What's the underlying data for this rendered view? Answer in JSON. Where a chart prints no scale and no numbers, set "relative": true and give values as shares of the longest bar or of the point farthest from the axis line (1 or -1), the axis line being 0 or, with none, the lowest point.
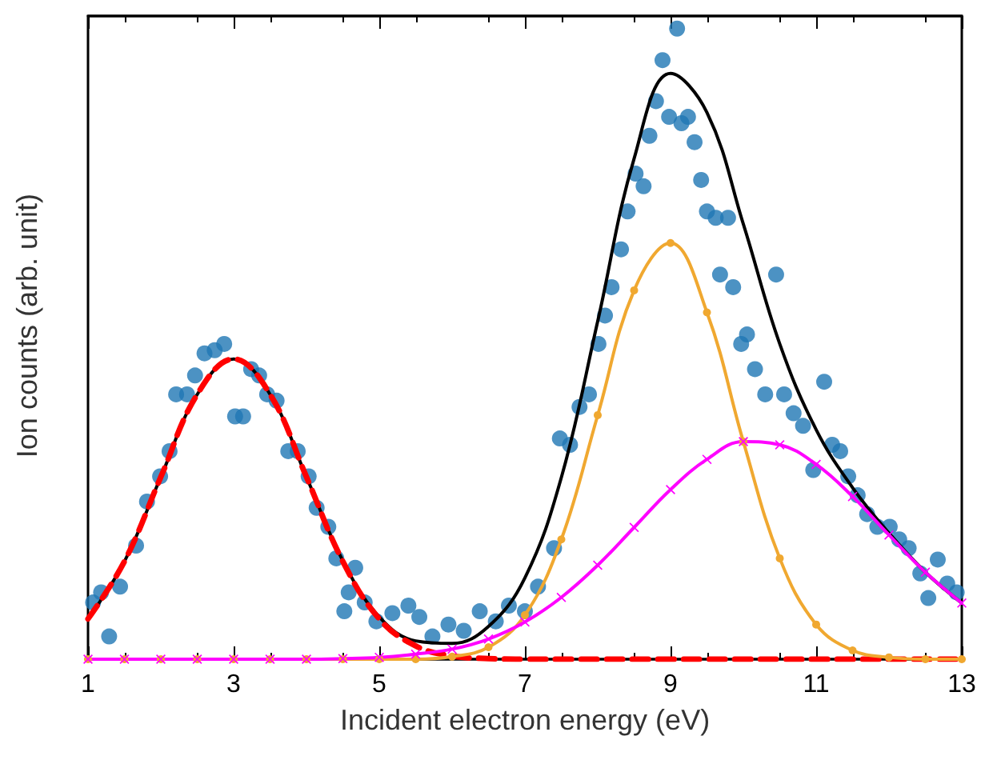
{
  "chart_data": {
    "type": "line",
    "relative": true,
    "xlabel": "Incident electron energy (eV)",
    "ylabel": "Ion counts (arb. unit)",
    "xlim": [
      1,
      13
    ],
    "xticks": [
      1,
      3,
      5,
      7,
      9,
      11,
      13
    ],
    "grid": false,
    "series": [
      {
        "type": "scatter",
        "color": "#1f77b4",
        "marker": "circle",
        "x": [
          1.07,
          1.18,
          1.29,
          1.44,
          1.66,
          1.81,
          1.99,
          2.12,
          2.21,
          2.36,
          2.47,
          2.6,
          2.74,
          2.87,
          3.02,
          3.13,
          3.24,
          3.35,
          3.46,
          3.59,
          3.75,
          3.88,
          4.03,
          4.14,
          4.3,
          4.41,
          4.52,
          4.58,
          4.67,
          4.8,
          4.96,
          5.18,
          5.4,
          5.55,
          5.73,
          5.95,
          6.16,
          6.38,
          6.6,
          6.78,
          7.0,
          7.18,
          7.4,
          7.48,
          7.62,
          7.75,
          7.88,
          8.01,
          8.1,
          8.19,
          8.32,
          8.41,
          8.52,
          8.63,
          8.71,
          8.8,
          8.89,
          8.98,
          9.09,
          9.15,
          9.24,
          9.33,
          9.42,
          9.5,
          9.62,
          9.68,
          9.79,
          9.86,
          9.97,
          10.05,
          10.16,
          10.3,
          10.45,
          10.56,
          10.69,
          10.82,
          10.96,
          11.11,
          11.22,
          11.33,
          11.44,
          11.57,
          11.7,
          11.84,
          12.01,
          12.14,
          12.27,
          12.43,
          12.54,
          12.67,
          12.8,
          12.93
        ],
        "values": [
          0.09,
          0.106,
          0.036,
          0.115,
          0.18,
          0.25,
          0.29,
          0.33,
          0.42,
          0.42,
          0.45,
          0.485,
          0.49,
          0.5,
          0.385,
          0.385,
          0.46,
          0.45,
          0.42,
          0.41,
          0.33,
          0.33,
          0.29,
          0.24,
          0.21,
          0.16,
          0.076,
          0.106,
          0.145,
          0.09,
          0.06,
          0.073,
          0.085,
          0.067,
          0.036,
          0.055,
          0.045,
          0.076,
          0.06,
          0.085,
          0.076,
          0.115,
          0.176,
          0.35,
          0.34,
          0.4,
          0.42,
          0.5,
          0.545,
          0.59,
          0.65,
          0.71,
          0.77,
          0.75,
          0.83,
          0.885,
          0.95,
          0.86,
          1.0,
          0.85,
          0.86,
          0.82,
          0.76,
          0.71,
          0.7,
          0.61,
          0.7,
          0.59,
          0.5,
          0.515,
          0.46,
          0.42,
          0.61,
          0.42,
          0.39,
          0.37,
          0.3,
          0.44,
          0.34,
          0.33,
          0.29,
          0.26,
          0.23,
          0.21,
          0.21,
          0.19,
          0.176,
          0.136,
          0.097,
          0.158,
          0.12,
          0.106
        ]
      },
      {
        "color": "#000000",
        "marker": "none",
        "line_style": "solid",
        "x": [
          1,
          1.5,
          2,
          2.5,
          3,
          3.5,
          4,
          4.5,
          5,
          5.5,
          6,
          6.5,
          7,
          7.5,
          8,
          8.5,
          9,
          9.5,
          10,
          10.5,
          11,
          11.5,
          12,
          12.5,
          13
        ],
        "values": [
          0.064,
          0.155,
          0.289,
          0.42,
          0.476,
          0.42,
          0.289,
          0.156,
          0.067,
          0.029,
          0.025,
          0.052,
          0.129,
          0.288,
          0.536,
          0.794,
          0.929,
          0.867,
          0.69,
          0.5,
          0.364,
          0.272,
          0.2,
          0.138,
          0.089
        ]
      },
      {
        "color": "#ff0000",
        "marker": "none",
        "line_style": "dashed",
        "x": [
          1,
          1.5,
          2,
          2.5,
          3,
          3.5,
          4,
          4.5,
          5,
          5.5,
          6,
          6.5,
          7,
          7.5,
          8,
          8.5,
          9,
          9.5,
          10,
          10.5,
          11,
          11.5,
          12,
          12.5,
          13
        ],
        "values": [
          0.064,
          0.155,
          0.289,
          0.42,
          0.476,
          0.42,
          0.289,
          0.155,
          0.064,
          0.021,
          0.005,
          0.001,
          0,
          0,
          0,
          0,
          0,
          0,
          0,
          0,
          0,
          0,
          0,
          0,
          0
        ]
      },
      {
        "color": "#f0a830",
        "marker": "circle",
        "line_style": "solid",
        "x": [
          1,
          1.5,
          2,
          2.5,
          3,
          3.5,
          4,
          4.5,
          5,
          5.5,
          6,
          6.5,
          7,
          7.5,
          8,
          8.5,
          9,
          9.5,
          10,
          10.5,
          11,
          11.5,
          12,
          12.5,
          13
        ],
        "values": [
          0,
          0,
          0,
          0,
          0,
          0,
          0,
          0,
          0,
          0,
          0.004,
          0.019,
          0.07,
          0.19,
          0.387,
          0.585,
          0.66,
          0.55,
          0.345,
          0.16,
          0.055,
          0.014,
          0.003,
          0,
          0
        ]
      },
      {
        "color": "#ff00ff",
        "marker": "cross",
        "line_style": "solid",
        "x": [
          1,
          1.5,
          2,
          2.5,
          3,
          3.5,
          4,
          4.5,
          5,
          5.5,
          6,
          6.5,
          7,
          7.5,
          8,
          8.5,
          9,
          9.5,
          10,
          10.5,
          11,
          11.5,
          12,
          12.5,
          13
        ],
        "values": [
          0,
          0,
          0,
          0,
          0,
          0,
          0,
          0.001,
          0.003,
          0.008,
          0.016,
          0.032,
          0.059,
          0.098,
          0.149,
          0.209,
          0.269,
          0.317,
          0.345,
          0.34,
          0.309,
          0.258,
          0.197,
          0.138,
          0.089
        ]
      }
    ]
  }
}
